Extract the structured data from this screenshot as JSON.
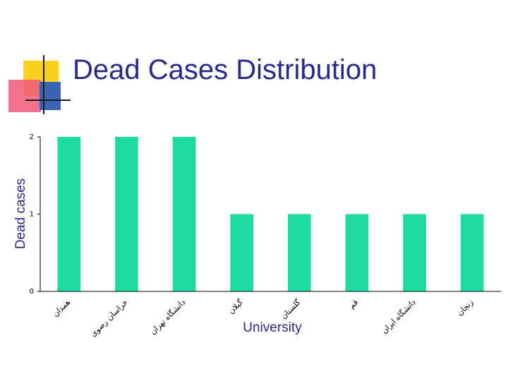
{
  "slide": {
    "title": "Dead Cases Distribution",
    "accent_colors": {
      "yellow": "#f7d21e",
      "pink": "#f15b7a",
      "blue": "#3b63b3",
      "line": "#1a1a1a"
    }
  },
  "chart_data": {
    "type": "bar",
    "title": "",
    "xlabel": "University",
    "ylabel": "Dead cases",
    "ylim": [
      0,
      2
    ],
    "yticks": [
      0,
      1,
      2
    ],
    "grid": false,
    "bar_color": "#1ddba1",
    "categories": [
      "همدان",
      "خراسان رضوی",
      "دانشگاه تهران",
      "گیلان",
      "گلستان",
      "قم",
      "دانشگاه ایران",
      "زنجان"
    ],
    "values": [
      2,
      2,
      2,
      1,
      1,
      1,
      1,
      1
    ]
  }
}
